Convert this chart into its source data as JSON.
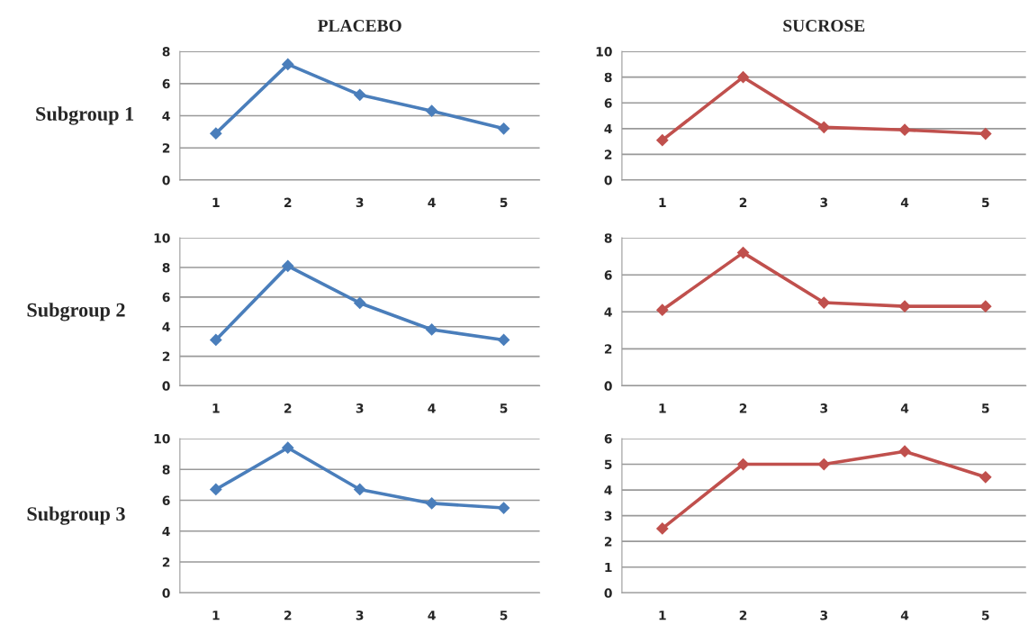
{
  "chart_data": [
    {
      "type": "line",
      "title": "PLACEBO",
      "ylabel": "Subgroup 1",
      "categories": [
        "1",
        "2",
        "3",
        "4",
        "5"
      ],
      "series": [
        {
          "color": "#4a7ebb",
          "values": [
            2.9,
            7.2,
            5.3,
            4.3,
            3.2
          ]
        }
      ],
      "ylim": [
        0,
        8
      ],
      "yticks": [
        0,
        2,
        4,
        6,
        8
      ],
      "grid": "y",
      "marker": "diamond",
      "line_style": "solid"
    },
    {
      "type": "line",
      "title": "SUCROSE",
      "categories": [
        "1",
        "2",
        "3",
        "4",
        "5"
      ],
      "series": [
        {
          "color": "#c0504d",
          "values": [
            3.1,
            8.0,
            4.1,
            3.9,
            3.6
          ]
        }
      ],
      "ylim": [
        0,
        10
      ],
      "yticks": [
        0,
        2,
        4,
        6,
        8,
        10
      ],
      "grid": "y",
      "marker": "diamond",
      "line_style": "solid"
    },
    {
      "type": "line",
      "ylabel": "Subgroup 2",
      "categories": [
        "1",
        "2",
        "3",
        "4",
        "5"
      ],
      "series": [
        {
          "color": "#4a7ebb",
          "values": [
            3.1,
            8.1,
            5.6,
            3.8,
            3.1
          ]
        }
      ],
      "ylim": [
        0,
        10
      ],
      "yticks": [
        0,
        2,
        4,
        6,
        8,
        10
      ],
      "grid": "y",
      "marker": "diamond",
      "line_style": "solid"
    },
    {
      "type": "line",
      "categories": [
        "1",
        "2",
        "3",
        "4",
        "5"
      ],
      "series": [
        {
          "color": "#c0504d",
          "values": [
            4.1,
            7.2,
            4.5,
            4.3,
            4.3
          ]
        }
      ],
      "ylim": [
        0,
        8
      ],
      "yticks": [
        0,
        2,
        4,
        6,
        8
      ],
      "grid": "y",
      "marker": "diamond",
      "line_style": "solid"
    },
    {
      "type": "line",
      "ylabel": "Subgroup 3",
      "categories": [
        "1",
        "2",
        "3",
        "4",
        "5"
      ],
      "series": [
        {
          "color": "#4a7ebb",
          "values": [
            6.7,
            9.4,
            6.7,
            5.8,
            5.5
          ]
        }
      ],
      "ylim": [
        0,
        10
      ],
      "yticks": [
        0,
        2,
        4,
        6,
        8,
        10
      ],
      "grid": "y",
      "marker": "diamond",
      "line_style": "solid"
    },
    {
      "type": "line",
      "categories": [
        "1",
        "2",
        "3",
        "4",
        "5"
      ],
      "series": [
        {
          "color": "#c0504d",
          "values": [
            2.5,
            5.0,
            5.0,
            5.5,
            4.5
          ]
        }
      ],
      "ylim": [
        0,
        6
      ],
      "yticks": [
        0,
        1,
        2,
        3,
        4,
        5,
        6
      ],
      "grid": "y",
      "marker": "diamond",
      "line_style": "solid"
    }
  ]
}
